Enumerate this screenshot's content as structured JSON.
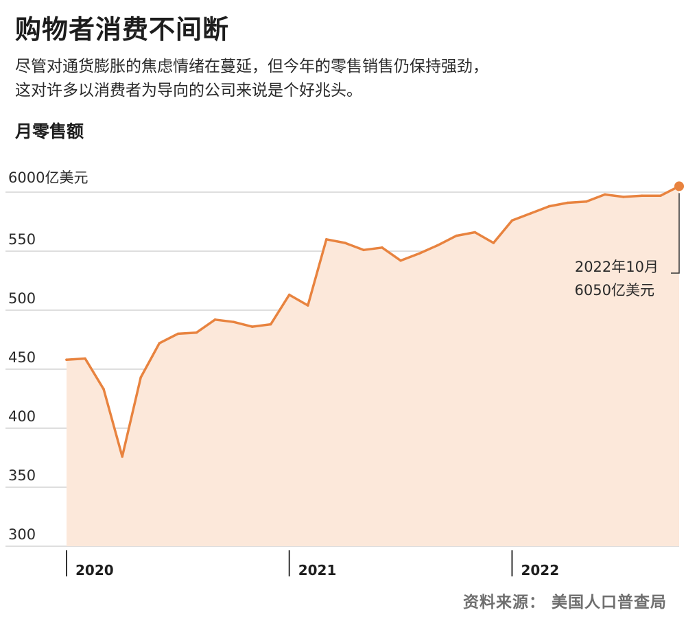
{
  "header": {
    "title": "购物者消费不间断",
    "subtitle_line1": "尽管对通货膨胀的焦虑情绪在蔓延，但今年的零售销售仍保持强劲，",
    "subtitle_line2": "这对许多以消费者为导向的公司来说是个好兆头。",
    "chart_label": "月零售额",
    "unit_label": "6000亿美元"
  },
  "footer": {
    "source": "资料来源： 美国人口普查局"
  },
  "colors": {
    "line": "#e8833f",
    "fill": "#fce8da",
    "grid": "#d4d4d4",
    "axis": "#333333"
  },
  "chart_data": {
    "type": "area",
    "title": "购物者消费不间断",
    "ylabel": "月零售额",
    "ylim": [
      300,
      600
    ],
    "yticks": [
      600,
      550,
      500,
      450,
      400,
      350,
      300
    ],
    "ytick_labels": [
      "",
      "550",
      "500",
      "450",
      "400",
      "350",
      "300"
    ],
    "grid": true,
    "xticks": [
      "2020",
      "2021",
      "2022"
    ],
    "x_start": "2020-01",
    "x_end": "2022-10",
    "series": [
      {
        "values": [
          458,
          459,
          433,
          376,
          443,
          472,
          480,
          481,
          492,
          490,
          486,
          488,
          513,
          504,
          560,
          557,
          551,
          553,
          542,
          548,
          555,
          563,
          566,
          557,
          576,
          582,
          588,
          591,
          592,
          598,
          596,
          597,
          597,
          605
        ]
      }
    ],
    "annotation": {
      "line1": "2022年10月",
      "line2": "6050亿美元",
      "value": 605
    }
  }
}
